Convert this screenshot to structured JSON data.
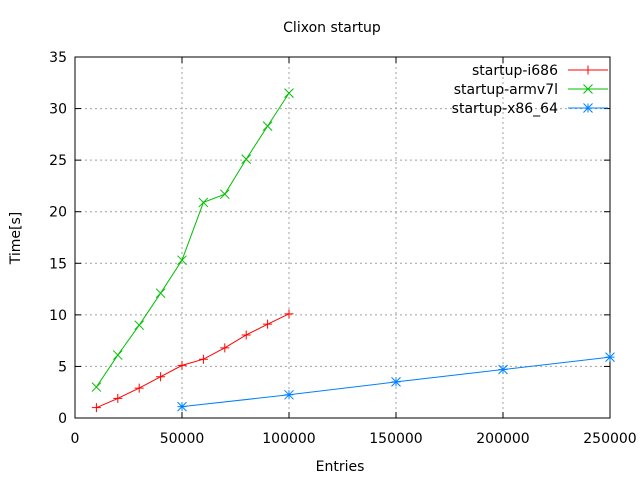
{
  "chart_data": {
    "type": "line",
    "title": "Clixon startup",
    "xlabel": "Entries",
    "ylabel": "Time[s]",
    "xlim": [
      0,
      250000
    ],
    "ylim": [
      0,
      35
    ],
    "xticks": [
      0,
      50000,
      100000,
      150000,
      200000,
      250000
    ],
    "yticks": [
      0,
      5,
      10,
      15,
      20,
      25,
      30,
      35
    ],
    "grid": true,
    "legend_position": "top-right",
    "series": [
      {
        "name": "startup-i686",
        "color": "#ff0000",
        "marker": "plus",
        "x": [
          10000,
          20000,
          30000,
          40000,
          50000,
          60000,
          70000,
          80000,
          90000,
          100000
        ],
        "y": [
          1.0,
          1.9,
          2.9,
          4.0,
          5.1,
          5.7,
          6.8,
          8.05,
          9.1,
          10.1
        ]
      },
      {
        "name": "startup-armv7l",
        "color": "#00c000",
        "marker": "cross",
        "x": [
          10000,
          20000,
          30000,
          40000,
          50000,
          60000,
          70000,
          80000,
          90000,
          100000
        ],
        "y": [
          3.0,
          6.1,
          9.0,
          12.1,
          15.3,
          20.9,
          21.7,
          25.1,
          28.3,
          31.5
        ]
      },
      {
        "name": "startup-x86_64",
        "color": "#0080ff",
        "marker": "star",
        "x": [
          50000,
          100000,
          150000,
          200000,
          250000
        ],
        "y": [
          1.1,
          2.25,
          3.5,
          4.7,
          5.9
        ]
      }
    ]
  }
}
